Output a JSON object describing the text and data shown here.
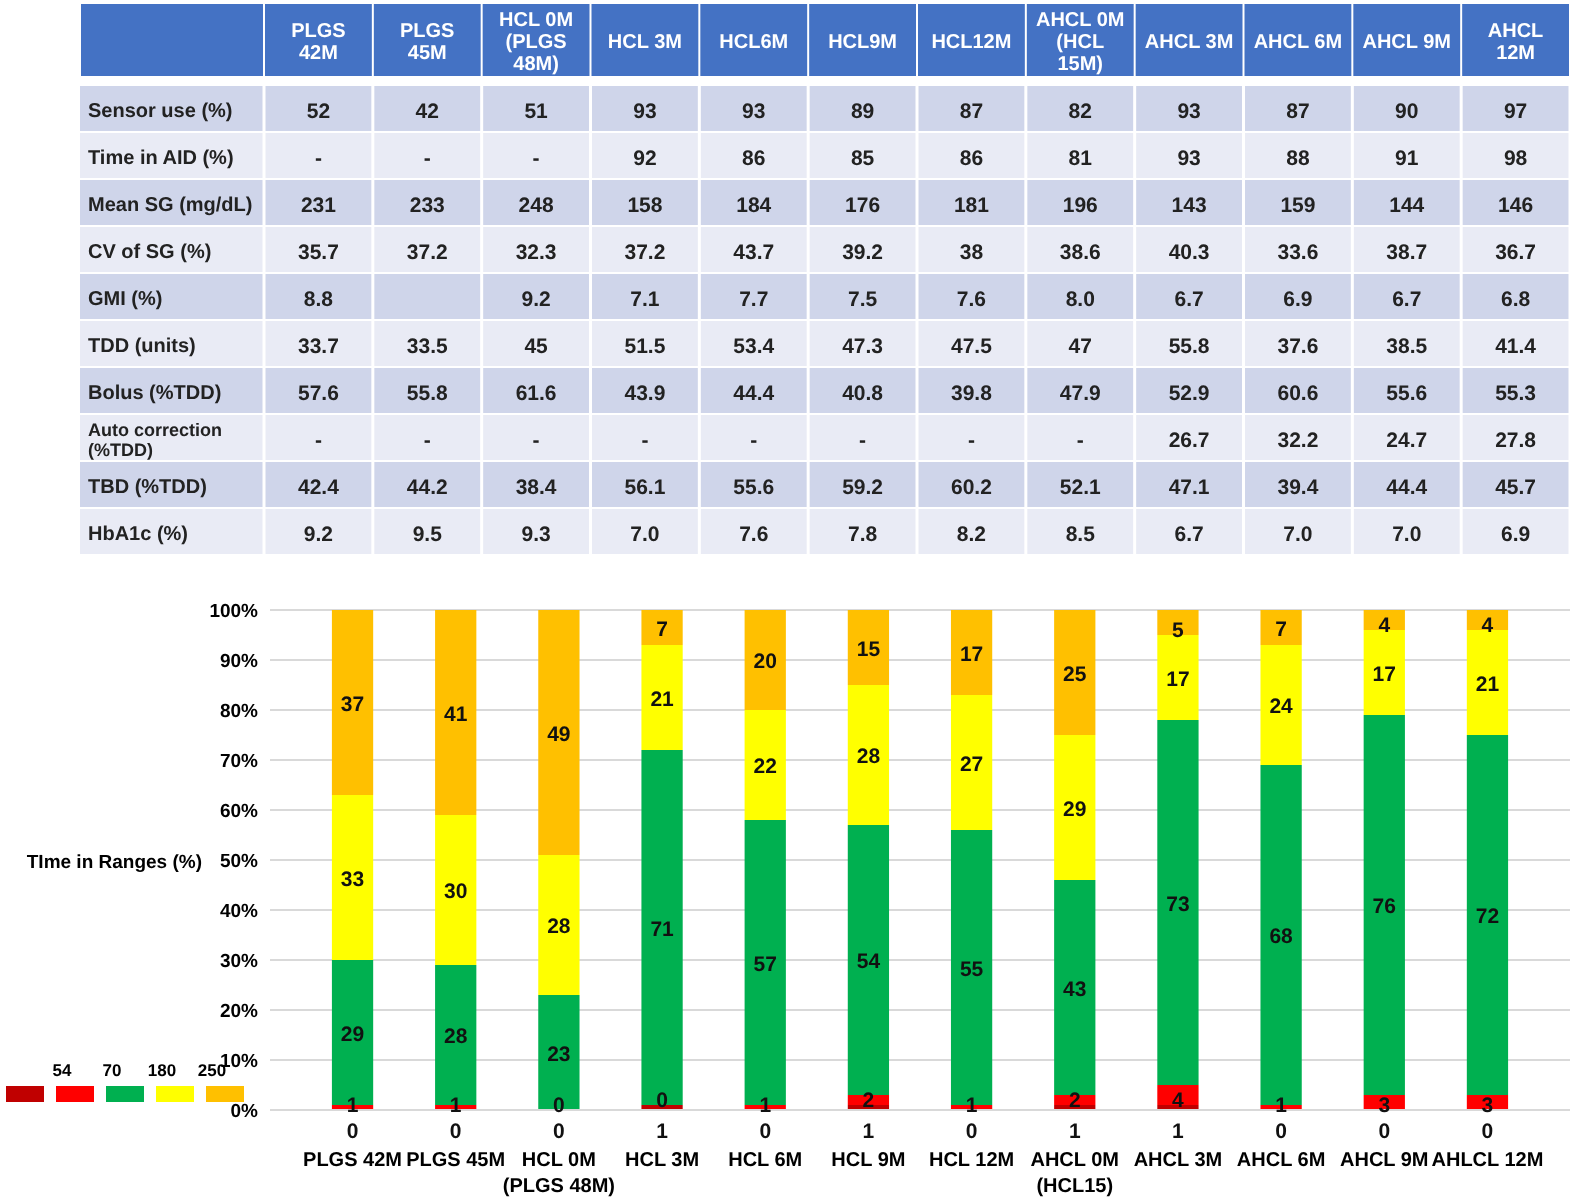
{
  "chart_data": [
    {
      "type": "other",
      "categories": [
        null,
        "PLGS 42M",
        "PLGS 45M",
        "HCL 0M (PLGS 48M)",
        "HCL 3M",
        "HCL6M",
        "HCL9M",
        "HCL12M",
        "AHCL 0M (HCL 15M)",
        "AHCL 3M",
        "AHCL 6M",
        "AHCL 9M",
        "AHCL 12M"
      ],
      "y_categories": [
        "Sensor use (%)",
        "Time in AID (%)",
        "Mean SG (mg/dL)",
        "CV of SG (%)",
        "GMI (%)",
        "TDD (units)",
        "Bolus (%TDD)",
        "Auto correction (%TDD)",
        "TBD (%TDD)",
        "HbA1c (%)"
      ],
      "cell_labels": [
        [
          "52",
          "42",
          "51",
          "93",
          "93",
          "89",
          "87",
          "82",
          "93",
          "87",
          "90",
          "97"
        ],
        [
          "-",
          "-",
          "-",
          "92",
          "86",
          "85",
          "86",
          "81",
          "93",
          "88",
          "91",
          "98"
        ],
        [
          "231",
          "233",
          "248",
          "158",
          "184",
          "176",
          "181",
          "196",
          "143",
          "159",
          "144",
          "146"
        ],
        [
          "35.7",
          "37.2",
          "32.3",
          "37.2",
          "43.7",
          "39.2",
          "38",
          "38.6",
          "40.3",
          "33.6",
          "38.7",
          "36.7"
        ],
        [
          "8.8",
          null,
          "9.2",
          "7.1",
          "7.7",
          "7.5",
          "7.6",
          "8.0",
          "6.7",
          "6.9",
          "6.7",
          "6.8"
        ],
        [
          "33.7",
          "33.5",
          "45",
          "51.5",
          "53.4",
          "47.3",
          "47.5",
          "47",
          "55.8",
          "37.6",
          "38.5",
          "41.4"
        ],
        [
          "57.6",
          "55.8",
          "61.6",
          "43.9",
          "44.4",
          "40.8",
          "39.8",
          "47.9",
          "52.9",
          "60.6",
          "55.6",
          "55.3"
        ],
        [
          "-",
          "-",
          "-",
          "-",
          "-",
          "-",
          "-",
          "-",
          "26.7",
          "32.2",
          "24.7",
          "27.8"
        ],
        [
          "42.4",
          "44.2",
          "38.4",
          "56.1",
          "55.6",
          "59.2",
          "60.2",
          "52.1",
          "47.1",
          "39.4",
          "44.4",
          "45.7"
        ],
        [
          "9.2",
          "9.5",
          "9.3",
          "7.0",
          "7.6",
          "7.8",
          "8.2",
          "8.5",
          "6.7",
          "7.0",
          "7.0",
          "6.9"
        ]
      ]
    },
    {
      "type": "bar",
      "stacked": true,
      "ylabel": "TIme in Ranges (%)",
      "categories": [
        "PLGS 42M",
        "PLGS 45M",
        "HCL 0M (PLGS 48M)",
        "HCL 3M",
        "HCL 6M",
        "HCL 9M",
        "HCL 12M",
        "AHCL 0M (HCL15)",
        "AHCL 3M",
        "AHCL 6M",
        "AHCL 9M",
        "AHLCL 12M"
      ],
      "series": [
        {
          "color": "#c00000",
          "values": [
            0,
            0,
            0,
            1,
            0,
            1,
            0,
            1,
            1,
            0,
            0,
            0
          ]
        },
        {
          "color": "#ff0000",
          "values": [
            1,
            1,
            0,
            0,
            1,
            2,
            1,
            2,
            4,
            1,
            3,
            3
          ],
          "value_labels": [
            "1",
            "1",
            null,
            null,
            "1",
            "2",
            "1",
            "2",
            "4",
            "1",
            "3",
            "3"
          ]
        },
        {
          "color": "#00b050",
          "values": [
            29,
            28,
            23,
            71,
            57,
            54,
            55,
            43,
            73,
            68,
            76,
            72
          ]
        },
        {
          "color": "#ffff00",
          "values": [
            33,
            30,
            28,
            21,
            22,
            28,
            27,
            29,
            17,
            24,
            17,
            21
          ]
        },
        {
          "color": "#ffc000",
          "values": [
            37,
            41,
            49,
            7,
            20,
            15,
            17,
            25,
            5,
            7,
            4,
            4
          ]
        }
      ],
      "ylim": [
        0,
        100
      ],
      "yticks": [
        {
          "value": 0,
          "label": "0%"
        },
        {
          "value": 10,
          "label": "10%"
        },
        {
          "value": 20,
          "label": "20%"
        },
        {
          "value": 30,
          "label": "30%"
        },
        {
          "value": 40,
          "label": "40%"
        },
        {
          "value": 50,
          "label": "50%"
        },
        {
          "value": 60,
          "label": "60%"
        },
        {
          "value": 70,
          "label": "70%"
        },
        {
          "value": 80,
          "label": "80%"
        },
        {
          "value": 90,
          "label": "90%"
        },
        {
          "value": 100,
          "label": "100%"
        }
      ],
      "grid": "y",
      "data_labels": true,
      "annotations": [
        "54",
        "70",
        "180",
        "250",
        {
          "text": "0",
          "x": "HCL 0M (PLGS 48M)",
          "y": 0
        },
        {
          "text": "0",
          "x": "HCL 3M",
          "y": 1
        }
      ]
    }
  ]
}
